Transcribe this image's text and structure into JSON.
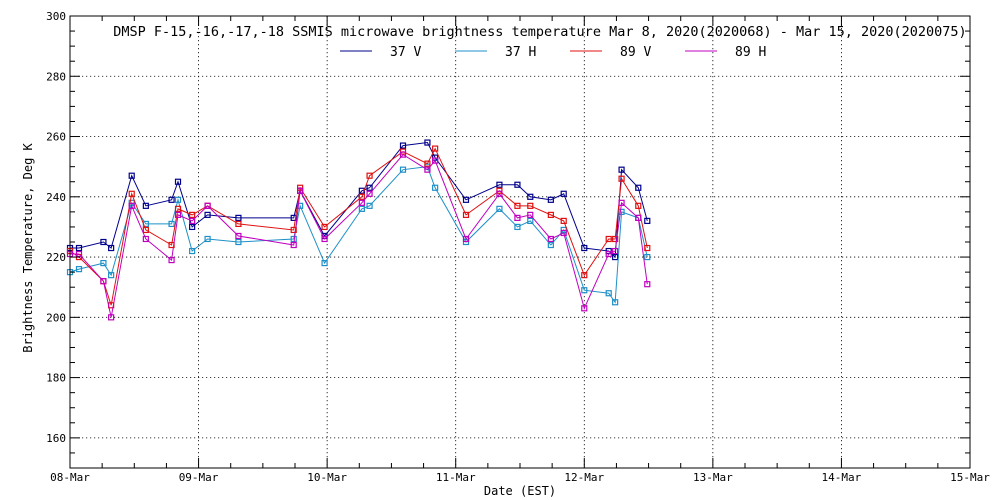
{
  "chart_data": {
    "type": "line",
    "title": "DMSP F-15,-16,-17,-18 SSMIS microwave brightness temperature Mar  8, 2020(2020068) - Mar 15, 2020(2020075)",
    "xlabel": "Date (EST)",
    "ylabel": "Brightness Temperature, Deg K",
    "x_tick_labels": [
      "08-Mar",
      "09-Mar",
      "10-Mar",
      "11-Mar",
      "12-Mar",
      "13-Mar",
      "14-Mar",
      "15-Mar"
    ],
    "y_ticks": [
      160,
      180,
      200,
      220,
      240,
      260,
      280,
      300
    ],
    "xlim_days": [
      0,
      7
    ],
    "ylim": [
      150,
      300
    ],
    "grid": true,
    "legend_position": "top",
    "x": [
      0.0,
      0.07,
      0.26,
      0.32,
      0.48,
      0.59,
      0.79,
      0.84,
      0.95,
      1.07,
      1.31,
      1.74,
      1.79,
      1.98,
      2.27,
      2.33,
      2.59,
      2.78,
      2.84,
      3.08,
      3.34,
      3.48,
      3.58,
      3.74,
      3.84,
      4.0,
      4.19,
      4.24,
      4.29,
      4.42,
      4.49,
      4.6
    ],
    "series": [
      {
        "name": "37 V",
        "color": "#00008b",
        "values": [
          223,
          223,
          225,
          223,
          247,
          237,
          239,
          245,
          230,
          234,
          233,
          233,
          242,
          227,
          242,
          243,
          257,
          258,
          253,
          239,
          244,
          244,
          240,
          239,
          241,
          223,
          222,
          220,
          249,
          243,
          232,
          null
        ]
      },
      {
        "name": "37 H",
        "color": "#1e90c8",
        "values": [
          215,
          216,
          218,
          214,
          238,
          231,
          231,
          239,
          222,
          226,
          225,
          226,
          237,
          218,
          236,
          237,
          249,
          250,
          243,
          225,
          236,
          230,
          232,
          224,
          229,
          209,
          208,
          205,
          235,
          233,
          220,
          null
        ]
      },
      {
        "name": "89 V",
        "color": "#e01010",
        "values": [
          222,
          220,
          212,
          204,
          241,
          229,
          224,
          236,
          234,
          237,
          231,
          229,
          243,
          230,
          240,
          247,
          255,
          251,
          256,
          234,
          242,
          237,
          237,
          234,
          232,
          214,
          226,
          226,
          246,
          237,
          223,
          null
        ]
      },
      {
        "name": "89 H",
        "color": "#c000c0",
        "values": [
          221,
          221,
          212,
          200,
          237,
          226,
          219,
          234,
          232,
          237,
          227,
          224,
          242,
          226,
          238,
          241,
          254,
          249,
          252,
          226,
          241,
          233,
          234,
          226,
          228,
          203,
          221,
          222,
          238,
          233,
          211,
          null
        ]
      }
    ]
  }
}
